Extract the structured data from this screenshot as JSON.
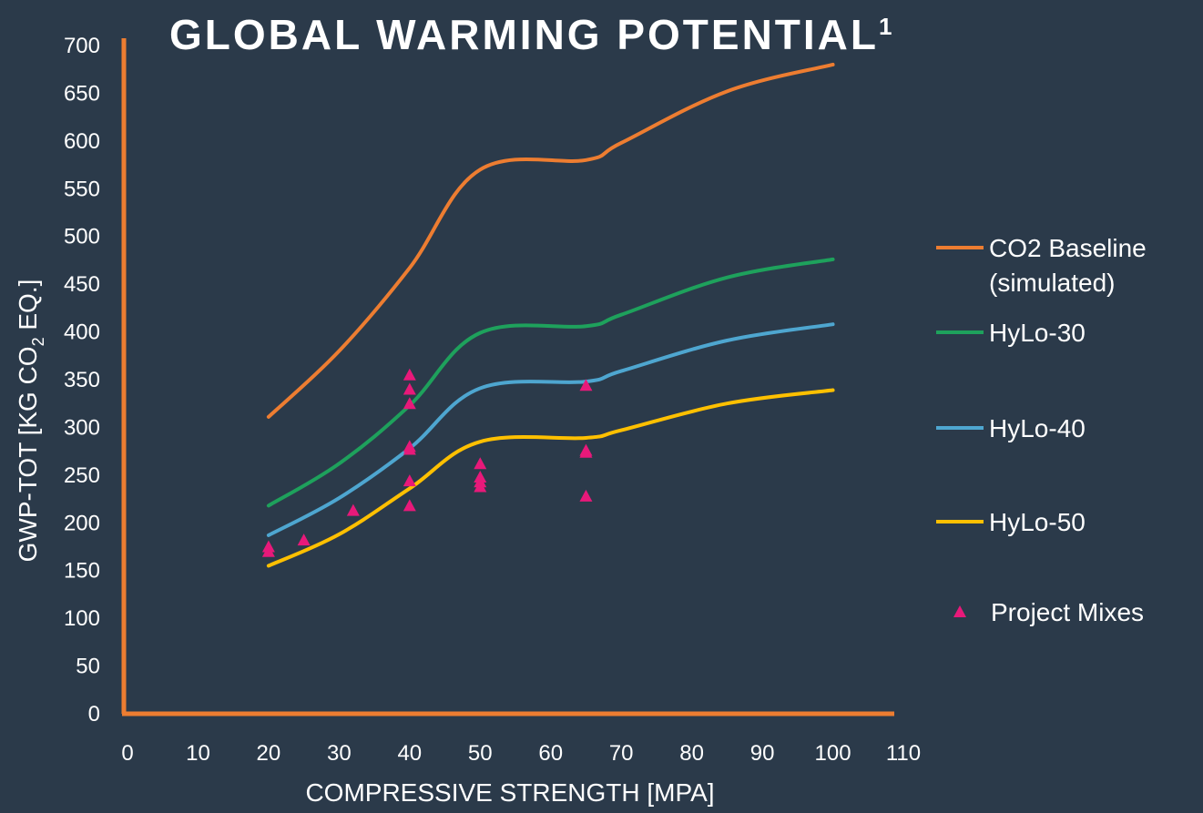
{
  "chart_data": {
    "type": "line",
    "title": "GLOBAL WARMING POTENTIAL",
    "title_superscript": "1",
    "xlabel": "COMPRESSIVE STRENGTH [MPA]",
    "ylabel_parts": [
      "GWP-TOT [KG CO",
      "2",
      " EQ.]"
    ],
    "xlim": [
      0,
      110
    ],
    "ylim": [
      0,
      700
    ],
    "x_ticks": [
      0,
      10,
      20,
      30,
      40,
      50,
      60,
      70,
      80,
      90,
      100,
      110
    ],
    "y_ticks": [
      0,
      50,
      100,
      150,
      200,
      250,
      300,
      350,
      400,
      450,
      500,
      550,
      600,
      650,
      700
    ],
    "grid": false,
    "legend_position": "right",
    "axis_color": "#ed7d31",
    "series": [
      {
        "name": "CO2 Baseline (simulated)",
        "legend_lines": [
          "CO2 Baseline",
          "(simulated)"
        ],
        "type": "line",
        "color": "#ed7d31",
        "x": [
          20,
          30,
          40,
          50,
          65,
          70,
          85,
          100
        ],
        "y": [
          311,
          380,
          467,
          570,
          580,
          598,
          652,
          680
        ]
      },
      {
        "name": "HyLo-30",
        "legend_lines": [
          "HyLo-30"
        ],
        "type": "line",
        "color": "#1ea15c",
        "x": [
          20,
          30,
          40,
          50,
          65,
          70,
          85,
          100
        ],
        "y": [
          218,
          262,
          323,
          399,
          406,
          418,
          457,
          476
        ]
      },
      {
        "name": "HyLo-40",
        "legend_lines": [
          "HyLo-40"
        ],
        "type": "line",
        "color": "#4ea6d0",
        "x": [
          20,
          30,
          40,
          50,
          65,
          70,
          85,
          100
        ],
        "y": [
          187,
          226,
          278,
          341,
          348,
          359,
          391,
          408
        ]
      },
      {
        "name": "HyLo-50",
        "legend_lines": [
          "HyLo-50"
        ],
        "type": "line",
        "color": "#ffc000",
        "x": [
          20,
          30,
          40,
          50,
          65,
          70,
          85,
          100
        ],
        "y": [
          155,
          188,
          236,
          285,
          289,
          297,
          325,
          339
        ]
      },
      {
        "name": "Project Mixes",
        "legend_lines": [
          "Project Mixes"
        ],
        "type": "scatter",
        "color": "#e8197a",
        "x": [
          20,
          20,
          25,
          32,
          40,
          40,
          40,
          40,
          40,
          40,
          40,
          50,
          50,
          50,
          50,
          65,
          65,
          65,
          65
        ],
        "y": [
          170,
          175,
          182,
          213,
          355,
          340,
          325,
          280,
          277,
          244,
          218,
          262,
          248,
          243,
          238,
          344,
          276,
          274,
          228
        ]
      }
    ]
  }
}
